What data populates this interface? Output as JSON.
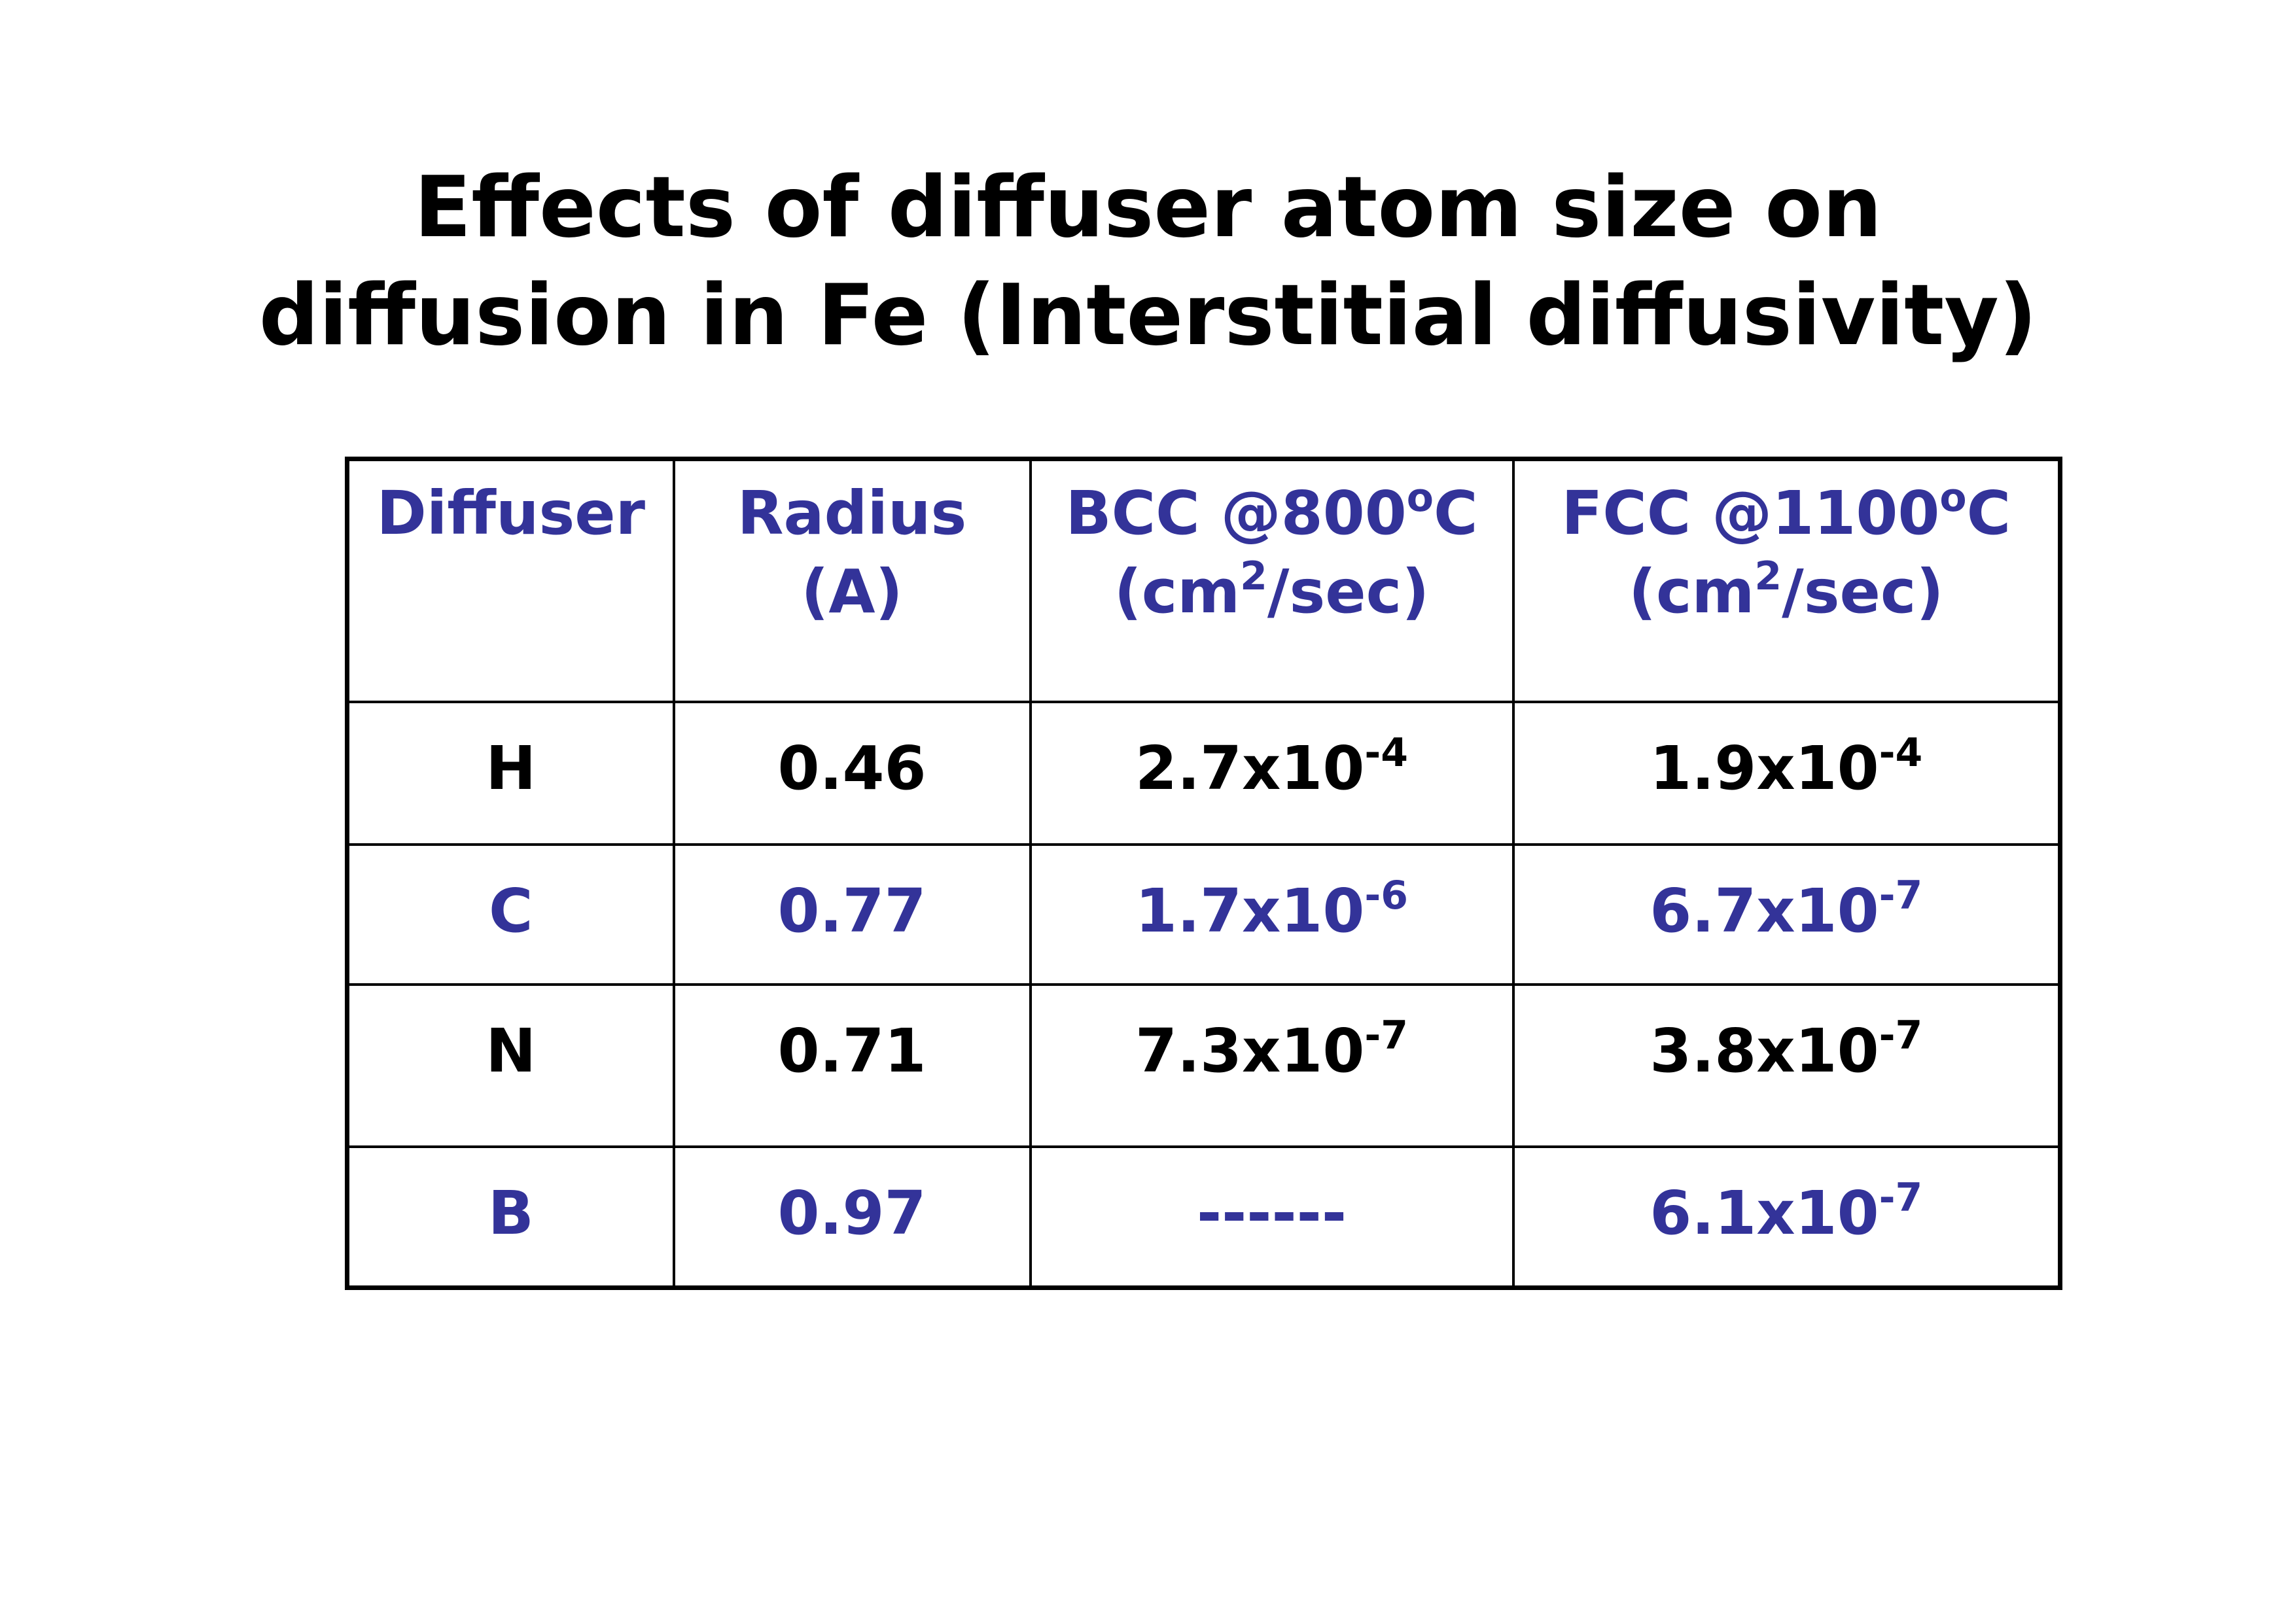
{
  "title": {
    "lines": [
      "Effects of diffuser atom size on",
      "diffusion in Fe (Interstitial diffusivity)"
    ]
  },
  "table": {
    "rows": [
      {
        "color": "#333399",
        "cells": [
          [
            [
              {
                "text": "Diffuser"
              }
            ]
          ],
          [
            [
              {
                "text": "Radius"
              }
            ],
            [
              {
                "text": "(A)"
              }
            ]
          ],
          [
            [
              {
                "text": "BCC @800"
              },
              {
                "text": "o",
                "sup": true
              },
              {
                "text": "C"
              }
            ],
            [
              {
                "text": "(cm"
              },
              {
                "text": "2",
                "sup": true
              },
              {
                "text": "/sec)"
              }
            ]
          ],
          [
            [
              {
                "text": "FCC @1100"
              },
              {
                "text": "o",
                "sup": true
              },
              {
                "text": "C"
              }
            ],
            [
              {
                "text": "(cm"
              },
              {
                "text": "2",
                "sup": true
              },
              {
                "text": "/sec)"
              }
            ]
          ]
        ]
      },
      {
        "color": "#000000",
        "cells": [
          [
            [
              {
                "text": "H"
              }
            ]
          ],
          [
            [
              {
                "text": "0.46"
              }
            ]
          ],
          [
            [
              {
                "text": "2.7x10"
              },
              {
                "text": "-4",
                "sup": true
              }
            ]
          ],
          [
            [
              {
                "text": "1.9x10"
              },
              {
                "text": "-4",
                "sup": true
              }
            ]
          ]
        ]
      },
      {
        "color": "#333399",
        "cells": [
          [
            [
              {
                "text": "C"
              }
            ]
          ],
          [
            [
              {
                "text": "0.77"
              }
            ]
          ],
          [
            [
              {
                "text": "1.7x10"
              },
              {
                "text": "-6",
                "sup": true
              }
            ]
          ],
          [
            [
              {
                "text": "6.7x10"
              },
              {
                "text": "-7",
                "sup": true
              }
            ]
          ]
        ]
      },
      {
        "color": "#000000",
        "cells": [
          [
            [
              {
                "text": "N"
              }
            ]
          ],
          [
            [
              {
                "text": "0.71"
              }
            ]
          ],
          [
            [
              {
                "text": "7.3x10"
              },
              {
                "text": "-7",
                "sup": true
              }
            ]
          ],
          [
            [
              {
                "text": "3.8x10"
              },
              {
                "text": "-7",
                "sup": true
              }
            ]
          ]
        ]
      },
      {
        "color": "#333399",
        "cells": [
          [
            [
              {
                "text": "B"
              }
            ]
          ],
          [
            [
              {
                "text": "0.97"
              }
            ]
          ],
          [
            [
              {
                "text": "------"
              }
            ]
          ],
          [
            [
              {
                "text": "6.1x10"
              },
              {
                "text": "-7",
                "sup": true
              }
            ]
          ]
        ]
      }
    ]
  }
}
